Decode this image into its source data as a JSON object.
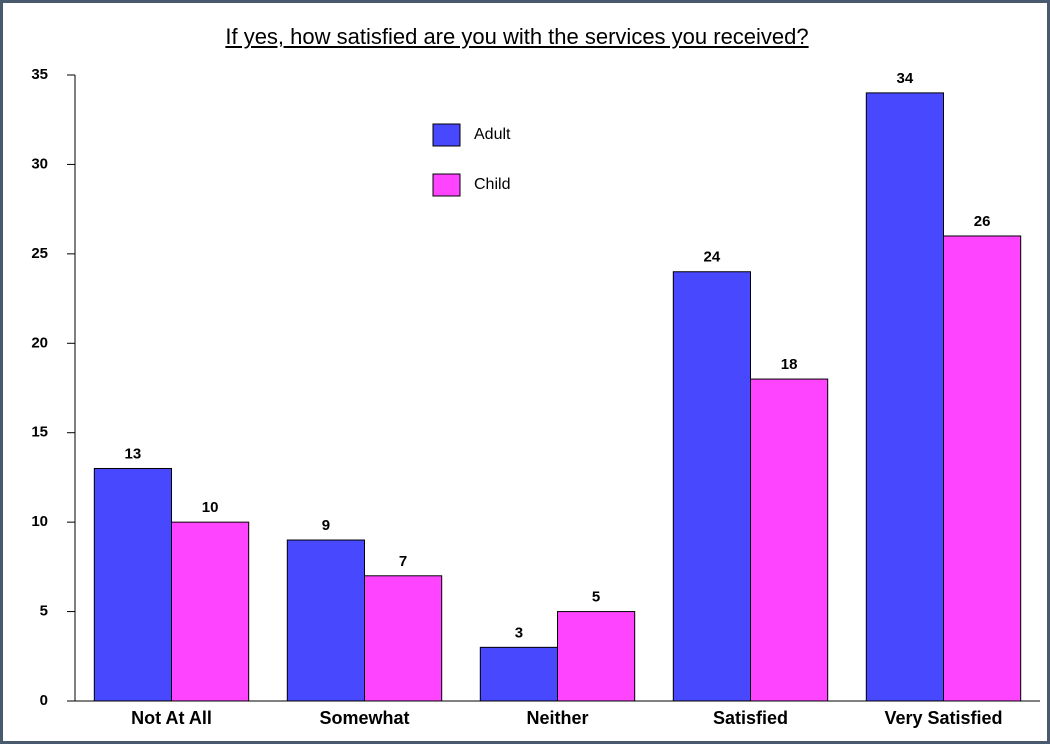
{
  "chart_data": {
    "type": "bar",
    "title": "If yes, how satisfied are you with the services you received?",
    "categories": [
      "Not At All",
      "Somewhat",
      "Neither",
      "Satisfied",
      "Very Satisfied"
    ],
    "series": [
      {
        "name": "Adult",
        "color": "#4848ff",
        "values": [
          13,
          9,
          3,
          24,
          34
        ]
      },
      {
        "name": "Child",
        "color": "#ff44ff",
        "values": [
          10,
          7,
          5,
          18,
          26
        ]
      }
    ],
    "ylim": [
      0,
      35
    ],
    "yticks": [
      0,
      5,
      10,
      15,
      20,
      25,
      30,
      35
    ],
    "grid": false
  }
}
